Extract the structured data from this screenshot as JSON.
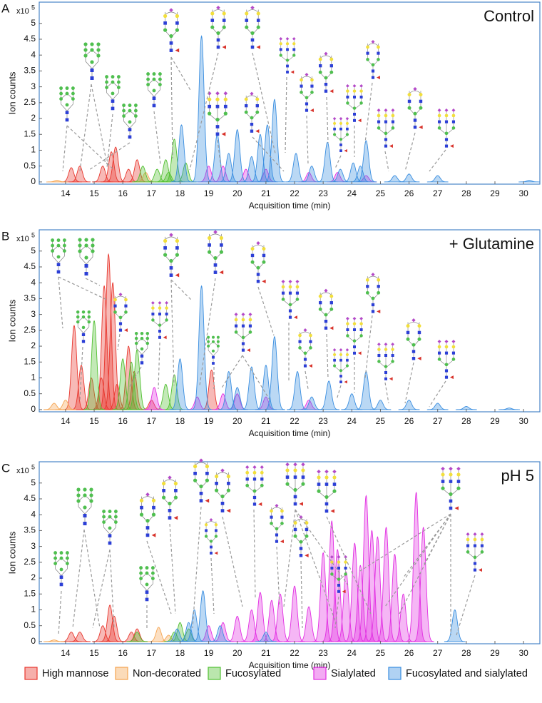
{
  "chart_data": [
    {
      "type": "chromatogram",
      "panel_label": "A",
      "title": "Control",
      "y_scale": "x10",
      "y_scale_exponent": "5",
      "y_label": "Ion counts",
      "x_label": "Acquisition time (min)",
      "xlim": [
        13.08,
        30.57
      ],
      "ylim": [
        -0.07,
        5.67
      ],
      "xticks": [
        14,
        15,
        16,
        17,
        18,
        19,
        20,
        21,
        22,
        23,
        24,
        25,
        26,
        27,
        28,
        29,
        30
      ],
      "yticks": [
        0,
        0.5,
        1,
        1.5,
        2,
        2.5,
        3,
        3.5,
        4,
        4.5,
        5
      ],
      "grid": false,
      "series": [
        {
          "name": "High mannose",
          "color": "#e8372e",
          "x": [
            14.2,
            14.5,
            15.3,
            15.6,
            15.75,
            16.2,
            16.5
          ],
          "values": [
            0.45,
            0.5,
            0.5,
            0.95,
            1.1,
            0.4,
            0.7
          ]
        },
        {
          "name": "Non-decorated",
          "color": "#f5a450",
          "x": [
            13.7,
            16.8
          ],
          "values": [
            0.05,
            0.3
          ]
        },
        {
          "name": "Fucosylated",
          "color": "#52c032",
          "x": [
            16.7,
            17.2,
            17.5,
            17.6,
            17.8,
            18.2
          ],
          "values": [
            0.5,
            0.4,
            0.7,
            0.3,
            1.35,
            0.6
          ]
        },
        {
          "name": "Sialylated",
          "color": "#e22ee2",
          "x": [
            19.0,
            19.5,
            20.3,
            21.0,
            22.5,
            23.5,
            24.5
          ],
          "values": [
            0.5,
            0.5,
            0.4,
            0.4,
            0.3,
            0.3,
            0.2
          ]
        },
        {
          "name": "Fucosylated and sialylated",
          "color": "#3a8ee0",
          "x": [
            18.05,
            18.75,
            19.3,
            19.7,
            20.0,
            20.5,
            20.8,
            21.05,
            21.3,
            22.05,
            22.6,
            23.15,
            23.6,
            24.05,
            24.3,
            24.5,
            25.5,
            26.0,
            27.0,
            30.2
          ],
          "values": [
            1.8,
            4.6,
            1.5,
            0.9,
            1.65,
            0.8,
            1.5,
            1.8,
            2.6,
            0.9,
            0.5,
            1.25,
            0.4,
            0.6,
            0.5,
            1.3,
            0.2,
            0.25,
            0.2,
            0.05
          ]
        }
      ]
    },
    {
      "type": "chromatogram",
      "panel_label": "B",
      "title": "+ Glutamine",
      "y_scale": "x10",
      "y_scale_exponent": "5",
      "y_label": "Ion counts",
      "x_label": "Acquisition time (min)",
      "xlim": [
        13.08,
        30.57
      ],
      "ylim": [
        -0.07,
        5.67
      ],
      "xticks": [
        14,
        15,
        16,
        17,
        18,
        19,
        20,
        21,
        22,
        23,
        24,
        25,
        26,
        27,
        28,
        29,
        30
      ],
      "yticks": [
        0,
        0.5,
        1,
        1.5,
        2,
        2.5,
        3,
        3.5,
        4,
        4.5,
        5
      ],
      "grid": false,
      "series": [
        {
          "name": "High mannose",
          "color": "#e8372e",
          "x": [
            14.3,
            14.55,
            14.9,
            15.25,
            15.35,
            15.5,
            15.65,
            15.8,
            16.2,
            16.4,
            17.0,
            19.1
          ],
          "values": [
            2.65,
            1.4,
            1.0,
            1.0,
            3.9,
            4.9,
            4.0,
            0.8,
            2.0,
            1.2,
            0.3,
            1.25
          ]
        },
        {
          "name": "Non-decorated",
          "color": "#f5a450",
          "x": [
            13.6,
            14.0
          ],
          "values": [
            0.2,
            0.3
          ]
        },
        {
          "name": "Fucosylated",
          "color": "#52c032",
          "x": [
            15.0,
            16.0,
            16.3,
            16.5,
            17.5,
            17.8
          ],
          "values": [
            2.8,
            1.6,
            1.5,
            1.9,
            0.8,
            1.1
          ]
        },
        {
          "name": "Sialylated",
          "color": "#e22ee2",
          "x": [
            17.1,
            18.6,
            19.5,
            20.0,
            21.0,
            22.5
          ],
          "values": [
            0.7,
            0.4,
            0.5,
            0.5,
            0.4,
            0.3
          ]
        },
        {
          "name": "Fucosylated and sialylated",
          "color": "#3a8ee0",
          "x": [
            18.0,
            18.75,
            19.7,
            20.0,
            20.5,
            21.0,
            21.3,
            22.1,
            22.6,
            23.2,
            24.0,
            24.5,
            25.0,
            26.0,
            27.0,
            28.0,
            29.5
          ],
          "values": [
            1.6,
            3.9,
            1.2,
            0.7,
            1.35,
            1.4,
            2.3,
            1.2,
            0.4,
            0.9,
            0.5,
            1.2,
            0.3,
            0.3,
            0.2,
            0.1,
            0.05
          ]
        }
      ]
    },
    {
      "type": "chromatogram",
      "panel_label": "C",
      "title": "pH 5",
      "y_scale": "x10",
      "y_scale_exponent": "5",
      "y_label": "Ion counts",
      "x_label": "Acquisition time (min)",
      "xlim": [
        13.08,
        30.57
      ],
      "ylim": [
        -0.07,
        5.67
      ],
      "xticks": [
        14,
        15,
        16,
        17,
        18,
        19,
        20,
        21,
        22,
        23,
        24,
        25,
        26,
        27,
        28,
        29,
        30
      ],
      "yticks": [
        0,
        0.5,
        1,
        1.5,
        2,
        2.5,
        3,
        3.5,
        4,
        4.5,
        5
      ],
      "grid": false,
      "series": [
        {
          "name": "High mannose",
          "color": "#e8372e",
          "x": [
            14.2,
            14.5,
            15.3,
            15.55,
            15.7,
            16.3,
            16.5
          ],
          "values": [
            0.3,
            0.3,
            0.5,
            1.15,
            0.8,
            0.3,
            0.4
          ]
        },
        {
          "name": "Non-decorated",
          "color": "#f5a450",
          "x": [
            13.6,
            17.25,
            17.6
          ],
          "values": [
            0.05,
            0.45,
            0.2
          ]
        },
        {
          "name": "Fucosylated",
          "color": "#52c032",
          "x": [
            16.5,
            17.8,
            18.0,
            18.3
          ],
          "values": [
            0.3,
            0.3,
            0.6,
            0.4
          ]
        },
        {
          "name": "Sialylated",
          "color": "#e22ee2",
          "x": [
            19.0,
            19.5,
            20.0,
            20.5,
            20.8,
            21.2,
            21.5,
            22.0,
            22.5,
            23.0,
            23.3,
            23.5,
            23.8,
            24.1,
            24.3,
            24.5,
            24.7,
            24.9,
            25.2,
            25.5,
            25.8,
            26.25,
            26.5
          ],
          "values": [
            0.5,
            0.6,
            0.8,
            1.0,
            1.55,
            1.3,
            1.5,
            1.75,
            1.1,
            2.8,
            3.8,
            2.9,
            2.2,
            3.1,
            2.4,
            4.6,
            3.5,
            3.3,
            3.6,
            2.75,
            1.5,
            4.7,
            3.6
          ]
        },
        {
          "name": "Fucosylated and sialylated",
          "color": "#3a8ee0",
          "x": [
            17.9,
            18.3,
            18.5,
            18.8,
            19.4,
            21.0,
            27.6
          ],
          "values": [
            0.4,
            0.6,
            1.0,
            1.6,
            0.5,
            0.3,
            1.0
          ]
        }
      ]
    }
  ]
}
